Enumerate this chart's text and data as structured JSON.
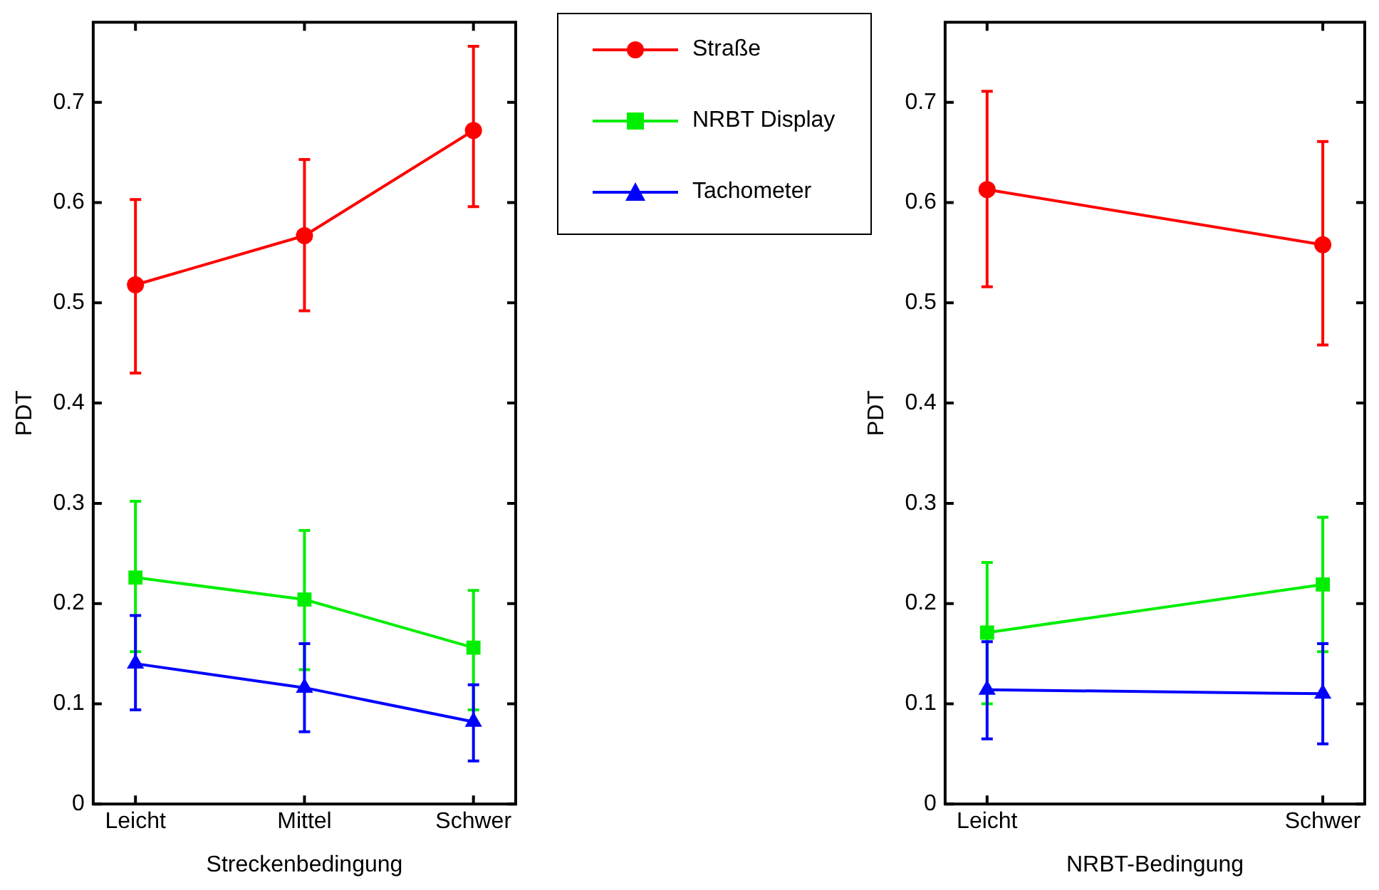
{
  "chart_data": [
    {
      "type": "line",
      "xlabel": "Streckenbedingung",
      "ylabel": "PDT",
      "categories": [
        "Leicht",
        "Mittel",
        "Schwer"
      ],
      "ylim": [
        0,
        0.78
      ],
      "yticks": [
        0,
        0.1,
        0.2,
        0.3,
        0.4,
        0.5,
        0.6,
        0.7
      ],
      "legend": "right",
      "series": [
        {
          "name": "Straße",
          "color": "#ff0000",
          "marker": "circle",
          "values": [
            0.518,
            0.567,
            0.672
          ],
          "errors": [
            [
              0.43,
              0.603
            ],
            [
              0.492,
              0.643
            ],
            [
              0.596,
              0.756
            ]
          ]
        },
        {
          "name": "NRBT Display",
          "color": "#00ee00",
          "marker": "square",
          "values": [
            0.226,
            0.204,
            0.156
          ],
          "errors": [
            [
              0.152,
              0.302
            ],
            [
              0.134,
              0.273
            ],
            [
              0.094,
              0.213
            ]
          ]
        },
        {
          "name": "Tachometer",
          "color": "#0000ff",
          "marker": "triangle",
          "values": [
            0.14,
            0.116,
            0.082
          ],
          "errors": [
            [
              0.094,
              0.188
            ],
            [
              0.072,
              0.16
            ],
            [
              0.043,
              0.119
            ]
          ]
        }
      ]
    },
    {
      "type": "line",
      "xlabel": "NRBT-Bedingung",
      "ylabel": "PDT",
      "categories": [
        "Leicht",
        "Schwer"
      ],
      "ylim": [
        0,
        0.78
      ],
      "yticks": [
        0,
        0.1,
        0.2,
        0.3,
        0.4,
        0.5,
        0.6,
        0.7
      ],
      "series": [
        {
          "color": "#ff0000",
          "marker": "circle",
          "values": [
            0.613,
            0.558
          ],
          "errors": [
            [
              0.516,
              0.711
            ],
            [
              0.458,
              0.661
            ]
          ]
        },
        {
          "color": "#00ee00",
          "marker": "square",
          "values": [
            0.171,
            0.219
          ],
          "errors": [
            [
              0.1,
              0.241
            ],
            [
              0.152,
              0.286
            ]
          ]
        },
        {
          "color": "#0000ff",
          "marker": "triangle",
          "values": [
            0.114,
            0.11
          ],
          "errors": [
            [
              0.065,
              0.162
            ],
            [
              0.06,
              0.16
            ]
          ]
        }
      ]
    }
  ]
}
